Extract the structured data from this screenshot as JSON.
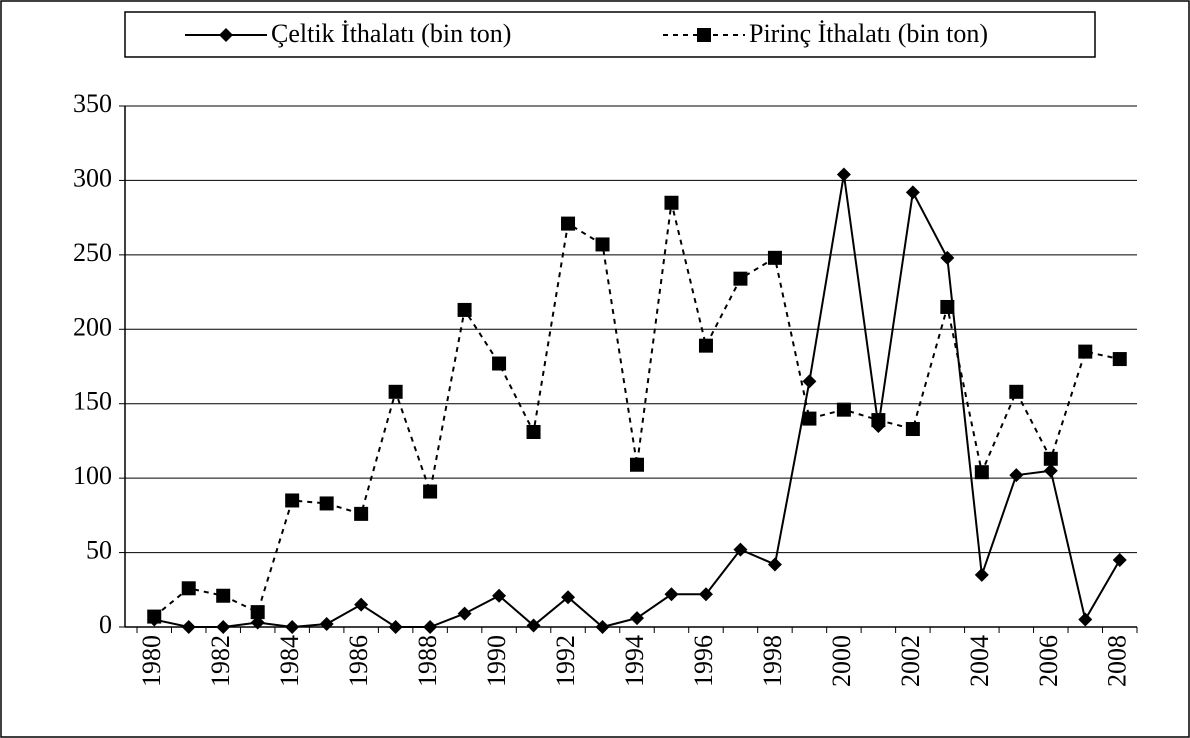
{
  "chart_data": {
    "type": "line",
    "categories": [
      "1980",
      null,
      "1982",
      null,
      "1984",
      null,
      "1986",
      null,
      "1988",
      null,
      "1990",
      null,
      "1992",
      null,
      "1994",
      null,
      "1996",
      null,
      "1998",
      null,
      "2000",
      null,
      "2002",
      null,
      "2004",
      null,
      "2006",
      null,
      "2008"
    ],
    "series": [
      {
        "name": "Çeltik İthalatı (bin ton)",
        "color": "#000000",
        "dash": "solid",
        "marker": "diamond",
        "values": [
          5,
          0,
          0,
          3,
          0,
          2,
          15,
          0,
          0,
          9,
          21,
          1,
          20,
          0,
          6,
          22,
          22,
          52,
          42,
          165,
          304,
          135,
          292,
          248,
          35,
          102,
          105,
          5,
          45
        ]
      },
      {
        "name": "Pirinç İthalatı (bin ton)",
        "color": "#000000",
        "dash": "dotted",
        "marker": "square",
        "values": [
          7,
          26,
          21,
          10,
          85,
          83,
          76,
          158,
          91,
          213,
          177,
          131,
          271,
          257,
          109,
          285,
          189,
          234,
          248,
          140,
          146,
          139,
          133,
          215,
          104,
          158,
          113,
          185,
          180
        ]
      }
    ],
    "ylim": [
      0,
      350
    ],
    "yticks": [
      0,
      50,
      100,
      150,
      200,
      250,
      300,
      350
    ],
    "grid": true,
    "legend": "top"
  }
}
